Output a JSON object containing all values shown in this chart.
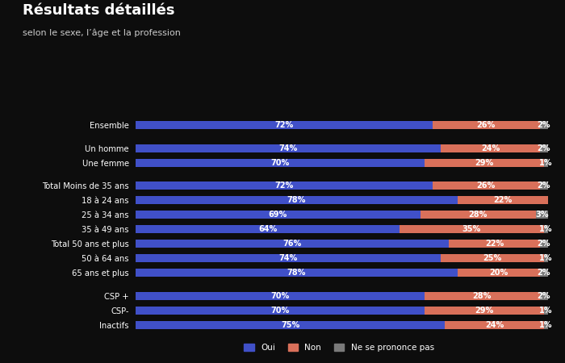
{
  "title": "Résultats détaillés",
  "subtitle": "selon le sexe, l’âge et la profession",
  "background_color": "#0d0d0d",
  "text_color": "#ffffff",
  "bar_height": 0.55,
  "colors": {
    "oui": "#4050c8",
    "non": "#d9705a",
    "nspp": "#7a7a7a"
  },
  "categories": [
    "Ensemble",
    "Un homme",
    "Une femme",
    "Total Moins de 35 ans",
    "18 à 24 ans",
    "25 à 34 ans",
    "35 à 49 ans",
    "Total 50 ans et plus",
    "50 à 64 ans",
    "65 ans et plus",
    "CSP +",
    "CSP-",
    "Inactifs"
  ],
  "oui": [
    72,
    74,
    70,
    72,
    78,
    69,
    64,
    76,
    74,
    78,
    70,
    70,
    75
  ],
  "non": [
    26,
    24,
    29,
    26,
    22,
    28,
    35,
    22,
    25,
    20,
    28,
    29,
    24
  ],
  "nspp": [
    2,
    2,
    1,
    2,
    0,
    3,
    1,
    2,
    1,
    2,
    2,
    1,
    1
  ],
  "group_gaps": [
    0,
    2,
    1,
    2,
    1,
    1,
    1,
    1,
    1,
    1,
    2,
    1,
    1
  ],
  "legend_labels": [
    "Oui",
    "Non",
    "Ne se prononce pas"
  ]
}
